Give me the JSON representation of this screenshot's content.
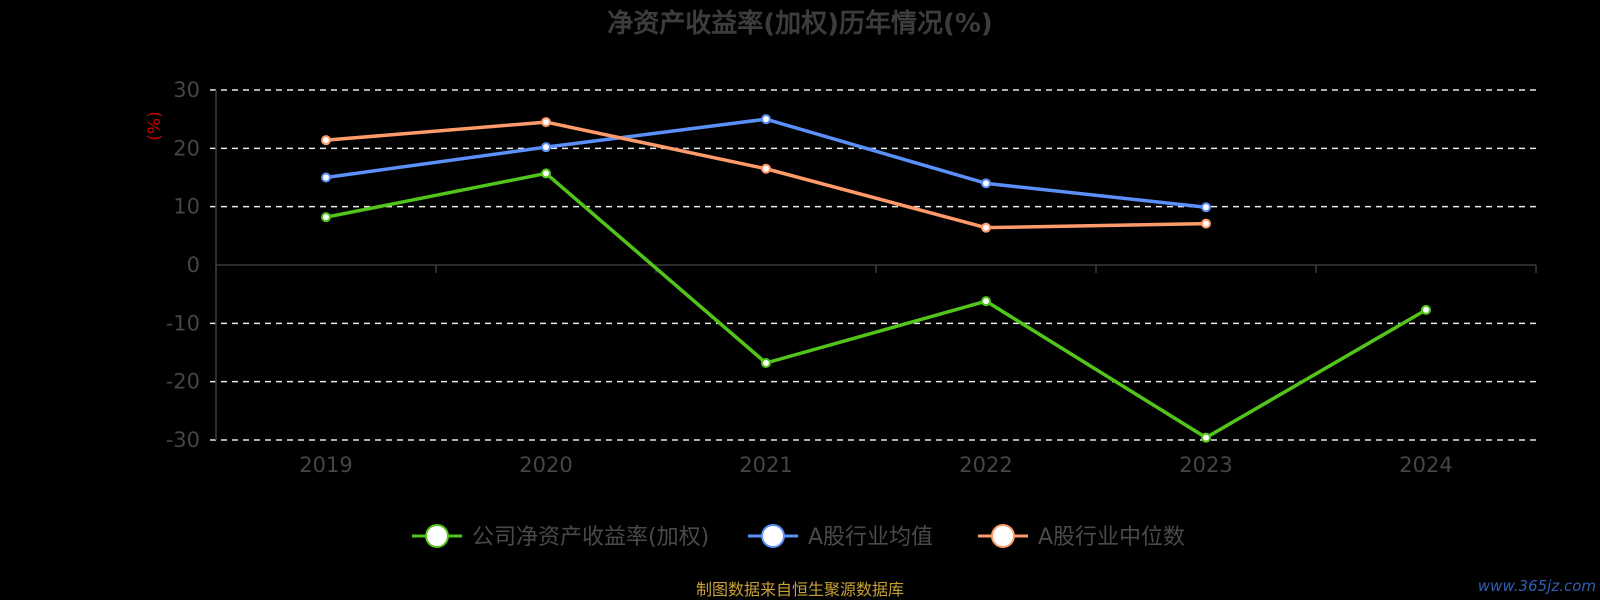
{
  "chart_data": {
    "type": "line",
    "title": "净资产收益率(加权)历年情况(%)",
    "ylabel": "(%)",
    "categories": [
      "2019",
      "2020",
      "2021",
      "2022",
      "2023",
      "2024"
    ],
    "y_ticks": [
      "30",
      "20",
      "10",
      "0",
      "-10",
      "-20",
      "-30"
    ],
    "ylim": [
      -30,
      30
    ],
    "grid": true,
    "legend_position": "bottom",
    "series": [
      {
        "name": "公司净资产收益率(加权)",
        "color": "#52c41a",
        "values": [
          8.2,
          15.7,
          -16.8,
          -6.2,
          -29.6,
          -7.7
        ]
      },
      {
        "name": "A股行业均值",
        "color": "#5b8ff9",
        "values": [
          15.0,
          20.2,
          25.0,
          14.0,
          9.9,
          null
        ]
      },
      {
        "name": "A股行业中位数",
        "color": "#ff9a6a",
        "values": [
          21.4,
          24.5,
          16.5,
          6.4,
          7.1,
          null
        ]
      }
    ]
  },
  "footer": {
    "source": "制图数据来自恒生聚源数据库",
    "watermark": "www.365jz.com"
  }
}
